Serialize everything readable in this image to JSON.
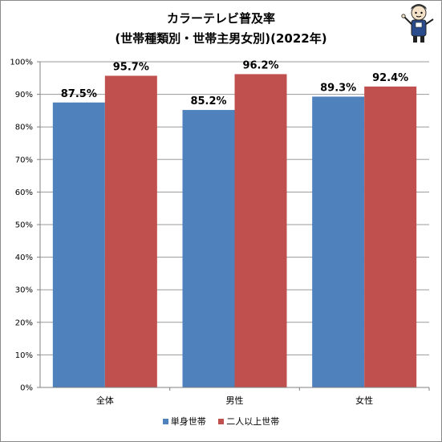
{
  "chart_data": {
    "type": "bar",
    "title": "カラーテレビ普及率",
    "subtitle": "(世帯種類別・世帯主男女別)(2022年)",
    "categories": [
      "全体",
      "男性",
      "女性"
    ],
    "series": [
      {
        "name": "単身世帯",
        "values": [
          87.5,
          85.2,
          89.3
        ],
        "labels": [
          "87.5%",
          "85.2%",
          "89.3%"
        ],
        "color": "#4f81bd"
      },
      {
        "name": "二人以上世帯",
        "values": [
          95.7,
          96.2,
          92.4
        ],
        "labels": [
          "95.7%",
          "96.2%",
          "92.4%"
        ],
        "color": "#c0504d"
      }
    ],
    "ylim": [
      0,
      100
    ],
    "yticks": [
      "0%",
      "10%",
      "20%",
      "30%",
      "40%",
      "50%",
      "60%",
      "70%",
      "80%",
      "90%",
      "100%"
    ],
    "grid": true,
    "legend_position": "bottom"
  },
  "mascot_icon": "mascot-icon"
}
